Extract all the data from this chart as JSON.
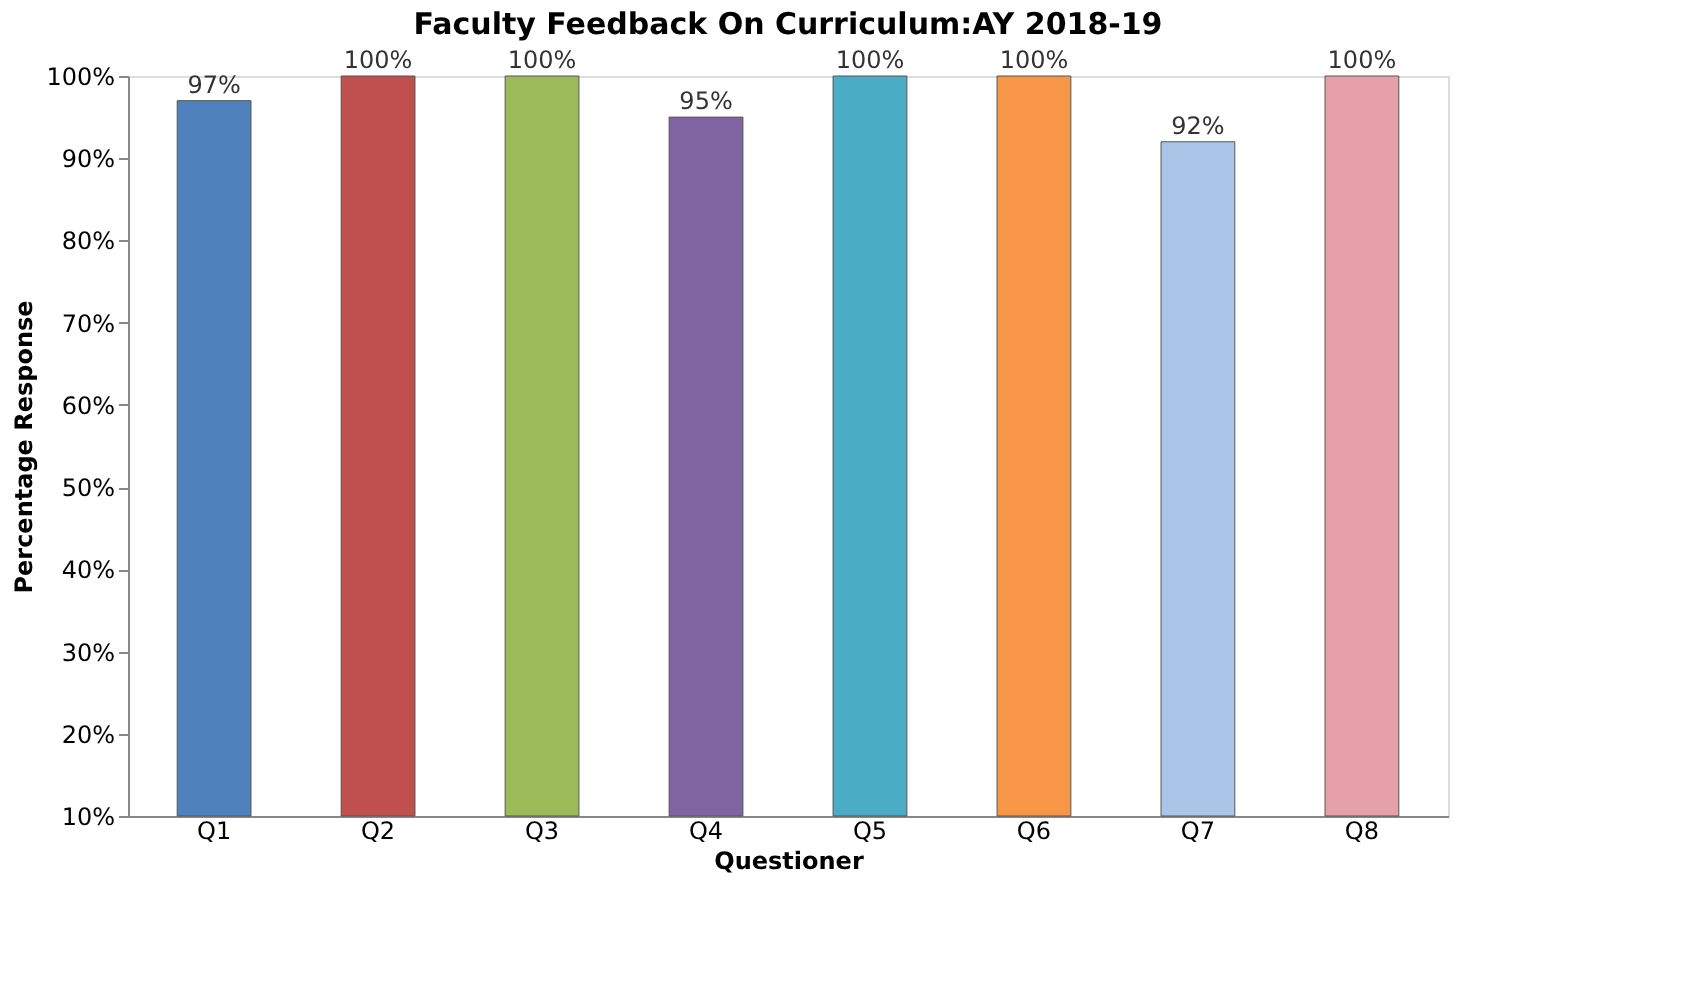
{
  "chart_data": {
    "type": "bar",
    "title": "Faculty Feedback On Curriculum:AY 2018-19",
    "xlabel": "Questioner",
    "ylabel": "Percentage Response",
    "categories": [
      "Q1",
      "Q2",
      "Q3",
      "Q4",
      "Q5",
      "Q6",
      "Q7",
      "Q8"
    ],
    "values": [
      97,
      100,
      100,
      95,
      100,
      100,
      92,
      100
    ],
    "value_labels": [
      "97%",
      "100%",
      "100%",
      "95%",
      "100%",
      "100%",
      "92%",
      "100%"
    ],
    "colors": [
      "#4f81bd",
      "#c0504d",
      "#9bbb59",
      "#8064a2",
      "#4bacc6",
      "#f79646",
      "#a9c6e8",
      "#e6a0a8"
    ],
    "ylim": [
      10,
      100
    ],
    "yticks": [
      {
        "value": 10,
        "label": "10%"
      },
      {
        "value": 20,
        "label": "20%"
      },
      {
        "value": 30,
        "label": "30%"
      },
      {
        "value": 40,
        "label": "40%"
      },
      {
        "value": 50,
        "label": "50%"
      },
      {
        "value": 60,
        "label": "60%"
      },
      {
        "value": 70,
        "label": "70%"
      },
      {
        "value": 80,
        "label": "80%"
      },
      {
        "value": 90,
        "label": "90%"
      },
      {
        "value": 100,
        "label": "100%"
      }
    ],
    "grid": false
  }
}
